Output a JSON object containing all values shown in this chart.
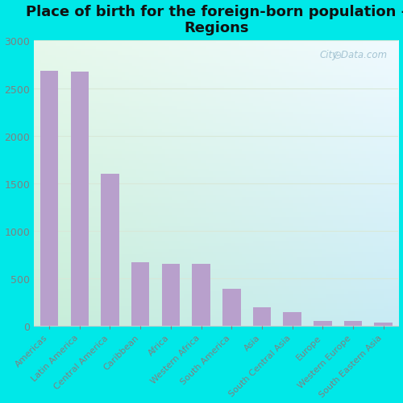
{
  "title": "Place of birth for the foreign-born population -\nRegions",
  "categories": [
    "Americas",
    "Latin America",
    "Central America",
    "Caribbean",
    "Africa",
    "Western Africa",
    "South America",
    "Asia",
    "South Central Asia",
    "Europe",
    "Western Europe",
    "South Eastern Asia"
  ],
  "values": [
    2680,
    2675,
    1600,
    670,
    655,
    650,
    390,
    195,
    140,
    50,
    52,
    35
  ],
  "bar_color": "#b8a0cc",
  "bg_outer": "#00e8e8",
  "bg_plot_topleft": "#e8f5e8",
  "bg_plot_topright": "#e0eff5",
  "bg_plot_bottomleft": "#c8eed8",
  "bg_plot_bottomright": "#d8eef5",
  "ylim": [
    0,
    3000
  ],
  "yticks": [
    0,
    500,
    1000,
    1500,
    2000,
    2500,
    3000
  ],
  "watermark": "City-Data.com",
  "title_fontsize": 13,
  "ytick_fontsize": 9,
  "xtick_fontsize": 8,
  "bar_width": 0.6,
  "grid_color": "#d8e8d8",
  "tick_color": "#808080",
  "spine_color": "#cccccc"
}
